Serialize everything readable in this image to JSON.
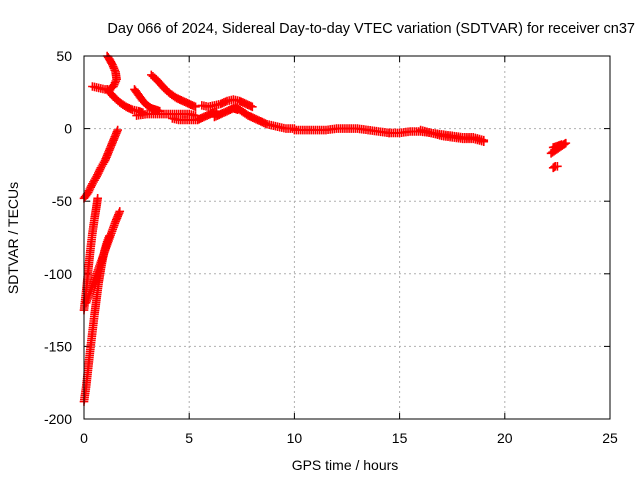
{
  "chart_data": {
    "type": "scatter",
    "title": "Day 066 of 2024, Sidereal Day-to-day VTEC variation (SDTVAR) for receiver cn37",
    "xlabel": "GPS time / hours",
    "ylabel": "SDTVAR / TECUs",
    "xlim": [
      0,
      25
    ],
    "ylim": [
      -200,
      50
    ],
    "xticks": [
      0,
      5,
      10,
      15,
      20,
      25
    ],
    "yticks": [
      -200,
      -150,
      -100,
      -50,
      0,
      50
    ],
    "grid": true,
    "marker": "plus",
    "color": "#ff0000",
    "segments": [
      {
        "name": "early-rise-top",
        "points": [
          [
            0.0,
            -48
          ],
          [
            0.2,
            -44
          ],
          [
            0.4,
            -38
          ],
          [
            0.6,
            -33
          ],
          [
            0.8,
            -27
          ],
          [
            1.0,
            -22
          ],
          [
            1.2,
            -15
          ],
          [
            1.4,
            -8
          ],
          [
            1.6,
            -1
          ]
        ]
      },
      {
        "name": "early-rise-left",
        "points": [
          [
            0.0,
            -125
          ],
          [
            0.1,
            -112
          ],
          [
            0.2,
            -98
          ],
          [
            0.3,
            -84
          ],
          [
            0.4,
            -72
          ],
          [
            0.5,
            -62
          ],
          [
            0.6,
            -53
          ],
          [
            0.65,
            -48
          ]
        ]
      },
      {
        "name": "early-rise-mid",
        "points": [
          [
            0.1,
            -120
          ],
          [
            0.3,
            -112
          ],
          [
            0.5,
            -104
          ],
          [
            0.7,
            -96
          ],
          [
            0.9,
            -88
          ],
          [
            1.1,
            -80
          ],
          [
            1.3,
            -72
          ],
          [
            1.5,
            -64
          ],
          [
            1.7,
            -57
          ]
        ]
      },
      {
        "name": "early-rise-low",
        "points": [
          [
            0.0,
            -188
          ],
          [
            0.1,
            -178
          ],
          [
            0.2,
            -165
          ],
          [
            0.3,
            -152
          ],
          [
            0.4,
            -140
          ],
          [
            0.5,
            -128
          ],
          [
            0.6,
            -117
          ],
          [
            0.7,
            -106
          ],
          [
            0.8,
            -97
          ],
          [
            0.9,
            -89
          ],
          [
            1.0,
            -83
          ],
          [
            1.1,
            -78
          ],
          [
            1.2,
            -74
          ]
        ]
      },
      {
        "name": "arc-top",
        "points": [
          [
            0.4,
            29
          ],
          [
            0.7,
            28
          ],
          [
            1.0,
            27
          ],
          [
            1.2,
            27
          ],
          [
            1.4,
            29
          ],
          [
            1.55,
            34
          ],
          [
            1.5,
            39
          ],
          [
            1.35,
            44
          ],
          [
            1.2,
            48
          ],
          [
            1.1,
            50
          ]
        ]
      },
      {
        "name": "descent-left",
        "points": [
          [
            1.1,
            27
          ],
          [
            1.4,
            22
          ],
          [
            1.7,
            18
          ],
          [
            2.0,
            15
          ],
          [
            2.3,
            13
          ],
          [
            2.6,
            12
          ],
          [
            2.8,
            11
          ]
        ]
      },
      {
        "name": "descent-mid",
        "points": [
          [
            2.4,
            27
          ],
          [
            2.6,
            23
          ],
          [
            2.8,
            19
          ],
          [
            3.0,
            16
          ],
          [
            3.2,
            14
          ],
          [
            3.4,
            13
          ],
          [
            3.6,
            12
          ]
        ]
      },
      {
        "name": "flat-band",
        "points": [
          [
            2.5,
            9
          ],
          [
            3.0,
            10
          ],
          [
            3.5,
            10
          ],
          [
            4.0,
            10
          ],
          [
            4.5,
            10
          ],
          [
            5.0,
            10
          ],
          [
            5.3,
            9
          ]
        ]
      },
      {
        "name": "descent-right",
        "points": [
          [
            3.2,
            37
          ],
          [
            3.5,
            33
          ],
          [
            3.8,
            28
          ],
          [
            4.1,
            24
          ],
          [
            4.4,
            21
          ],
          [
            4.7,
            19
          ],
          [
            5.0,
            17
          ],
          [
            5.3,
            15
          ]
        ]
      },
      {
        "name": "band-drop",
        "points": [
          [
            4.2,
            7
          ],
          [
            4.5,
            6
          ],
          [
            4.8,
            6
          ],
          [
            5.1,
            6
          ],
          [
            5.4,
            6
          ],
          [
            5.7,
            8
          ],
          [
            6.0,
            10
          ],
          [
            6.3,
            12
          ]
        ]
      },
      {
        "name": "hump",
        "points": [
          [
            5.6,
            16
          ],
          [
            5.9,
            15
          ],
          [
            6.2,
            16
          ],
          [
            6.5,
            17
          ],
          [
            6.8,
            19
          ],
          [
            7.1,
            20
          ],
          [
            7.4,
            19
          ],
          [
            7.7,
            17
          ],
          [
            8.0,
            15
          ]
        ]
      },
      {
        "name": "hump-lower",
        "points": [
          [
            6.2,
            8
          ],
          [
            6.5,
            10
          ],
          [
            6.8,
            12
          ],
          [
            7.1,
            14
          ],
          [
            7.3,
            13
          ]
        ]
      },
      {
        "name": "mid-decline",
        "points": [
          [
            7.2,
            15
          ],
          [
            7.5,
            12
          ],
          [
            7.8,
            9
          ],
          [
            8.1,
            7
          ],
          [
            8.4,
            5
          ],
          [
            8.7,
            3
          ],
          [
            9.0,
            2
          ],
          [
            9.3,
            1
          ],
          [
            9.6,
            0
          ],
          [
            10.0,
            0
          ]
        ]
      },
      {
        "name": "mid-plateau",
        "points": [
          [
            10.0,
            -1
          ],
          [
            10.5,
            -1
          ],
          [
            11.0,
            -1
          ],
          [
            11.5,
            -1
          ],
          [
            12.0,
            0
          ],
          [
            12.5,
            0
          ],
          [
            13.0,
            0
          ],
          [
            13.5,
            -1
          ],
          [
            14.0,
            -2
          ],
          [
            14.5,
            -3
          ]
        ]
      },
      {
        "name": "late-band",
        "points": [
          [
            14.5,
            -3
          ],
          [
            15.0,
            -3
          ],
          [
            15.5,
            -2
          ],
          [
            16.0,
            -2
          ],
          [
            16.5,
            -3
          ],
          [
            17.0,
            -4
          ],
          [
            17.5,
            -5
          ],
          [
            18.0,
            -6
          ],
          [
            18.5,
            -6
          ],
          [
            19.0,
            -8
          ]
        ]
      },
      {
        "name": "late-lower",
        "points": [
          [
            16.0,
            -1
          ],
          [
            16.5,
            -3
          ],
          [
            17.0,
            -5
          ],
          [
            17.5,
            -6
          ],
          [
            18.0,
            -7
          ],
          [
            18.5,
            -7
          ],
          [
            19.0,
            -9
          ]
        ]
      },
      {
        "name": "end-cluster",
        "points": [
          [
            22.2,
            -17
          ],
          [
            22.4,
            -15
          ],
          [
            22.6,
            -13
          ],
          [
            22.8,
            -11
          ],
          [
            22.9,
            -10
          ]
        ]
      },
      {
        "name": "end-cluster-2",
        "points": [
          [
            22.3,
            -13
          ],
          [
            22.5,
            -12
          ],
          [
            22.7,
            -11
          ]
        ]
      },
      {
        "name": "end-outlier",
        "points": [
          [
            22.3,
            -27
          ],
          [
            22.4,
            -26
          ],
          [
            22.5,
            -26
          ]
        ]
      }
    ]
  }
}
